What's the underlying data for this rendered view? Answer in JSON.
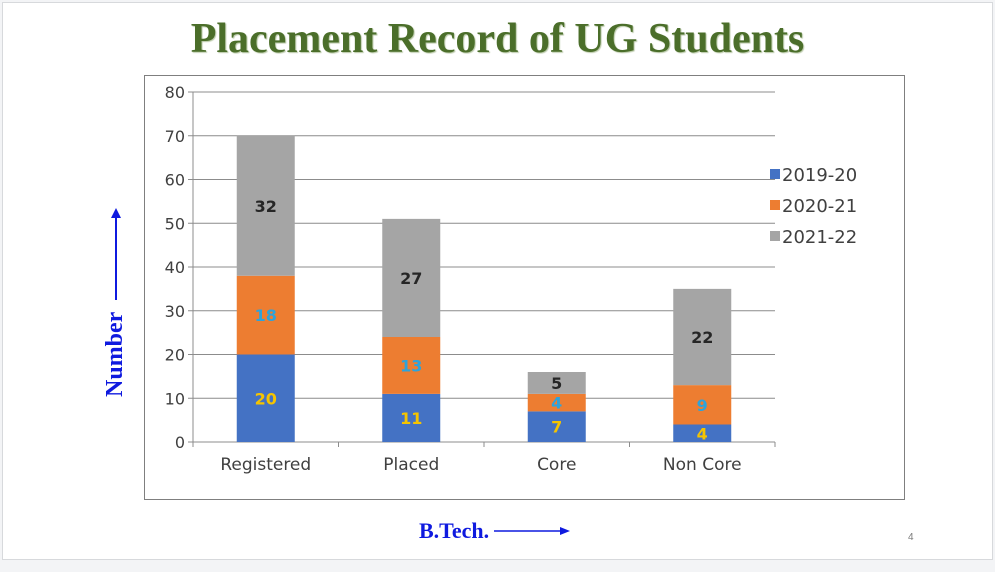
{
  "slide": {
    "title": "Placement Record of UG Students",
    "y_axis_label": "Number",
    "x_axis_label": "B.Tech.",
    "page_number": "4"
  },
  "colors": {
    "title": "#4b6e2a",
    "axis_label": "#0f1adf",
    "series_2019_20": "#4472c4",
    "series_2020_21": "#ed7d31",
    "series_2021_22": "#a5a5a5"
  },
  "chart_data": {
    "type": "bar",
    "stacked": true,
    "categories": [
      "Registered",
      "Placed",
      "Core",
      "Non Core"
    ],
    "series": [
      {
        "name": "2019-20",
        "values": [
          20,
          11,
          7,
          4
        ],
        "color": "#4472c4",
        "label_color": "#f5c400"
      },
      {
        "name": "2020-21",
        "values": [
          18,
          13,
          4,
          9
        ],
        "color": "#ed7d31",
        "label_color": "#2ea3db"
      },
      {
        "name": "2021-22",
        "values": [
          32,
          27,
          5,
          22
        ],
        "color": "#a5a5a5",
        "label_color": "#262626"
      }
    ],
    "ylim": [
      0,
      80
    ],
    "yticks": [
      0,
      10,
      20,
      30,
      40,
      50,
      60,
      70,
      80
    ],
    "grid": true,
    "legend_position": "right"
  }
}
